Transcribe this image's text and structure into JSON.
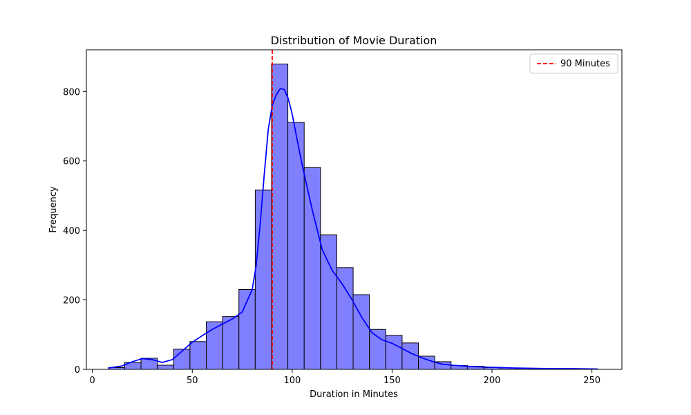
{
  "chart_data": {
    "type": "bar",
    "title": "Distribution of Movie Duration",
    "xlabel": "Duration in Minutes",
    "ylabel": "Frequency",
    "xlim": [
      -3,
      265
    ],
    "ylim": [
      0,
      920
    ],
    "xticks": [
      0,
      50,
      100,
      150,
      200,
      250
    ],
    "yticks": [
      0,
      200,
      400,
      600,
      800
    ],
    "bin_edges": [
      8,
      16.17,
      24.33,
      32.5,
      40.67,
      48.83,
      57,
      65.17,
      73.33,
      81.5,
      89.67,
      97.83,
      106,
      114.17,
      122.33,
      130.5,
      138.67,
      146.83,
      155,
      163.17,
      171.33,
      179.5,
      187.67,
      195.83,
      204,
      212.17,
      220.33,
      228.5,
      236.67,
      244.83,
      253
    ],
    "values": [
      5,
      20,
      32,
      12,
      58,
      80,
      137,
      152,
      230,
      516,
      879,
      711,
      581,
      387,
      293,
      215,
      115,
      98,
      76,
      38,
      22,
      11,
      9,
      5,
      4,
      3,
      2,
      2,
      1,
      1
    ],
    "bar_fill": "#8080ff",
    "bar_edge": "#000000",
    "kde": {
      "name": "",
      "color": "#0000ff",
      "x": [
        8,
        15,
        20,
        25,
        30,
        35,
        40,
        45,
        50,
        55,
        60,
        65,
        70,
        75,
        80,
        82,
        84,
        86,
        88,
        90,
        92,
        94,
        96,
        98,
        100,
        102,
        105,
        110,
        115,
        120,
        125,
        130,
        135,
        140,
        145,
        150,
        155,
        160,
        165,
        170,
        175,
        180,
        190,
        200,
        210,
        220,
        230,
        240,
        253
      ],
      "y": [
        4,
        10,
        22,
        31,
        28,
        20,
        28,
        53,
        78,
        97,
        115,
        130,
        145,
        165,
        230,
        300,
        420,
        560,
        690,
        760,
        790,
        808,
        806,
        780,
        735,
        675,
        588,
        460,
        345,
        285,
        246,
        200,
        148,
        105,
        85,
        75,
        60,
        45,
        33,
        23,
        15,
        12,
        8,
        6,
        4,
        3,
        2,
        2,
        1
      ]
    },
    "reference_line": {
      "x": 90,
      "color": "#ff0000",
      "label": "90 Minutes"
    },
    "legend": {
      "position": "top-right",
      "entries": [
        "90 Minutes"
      ]
    },
    "grid": false
  }
}
